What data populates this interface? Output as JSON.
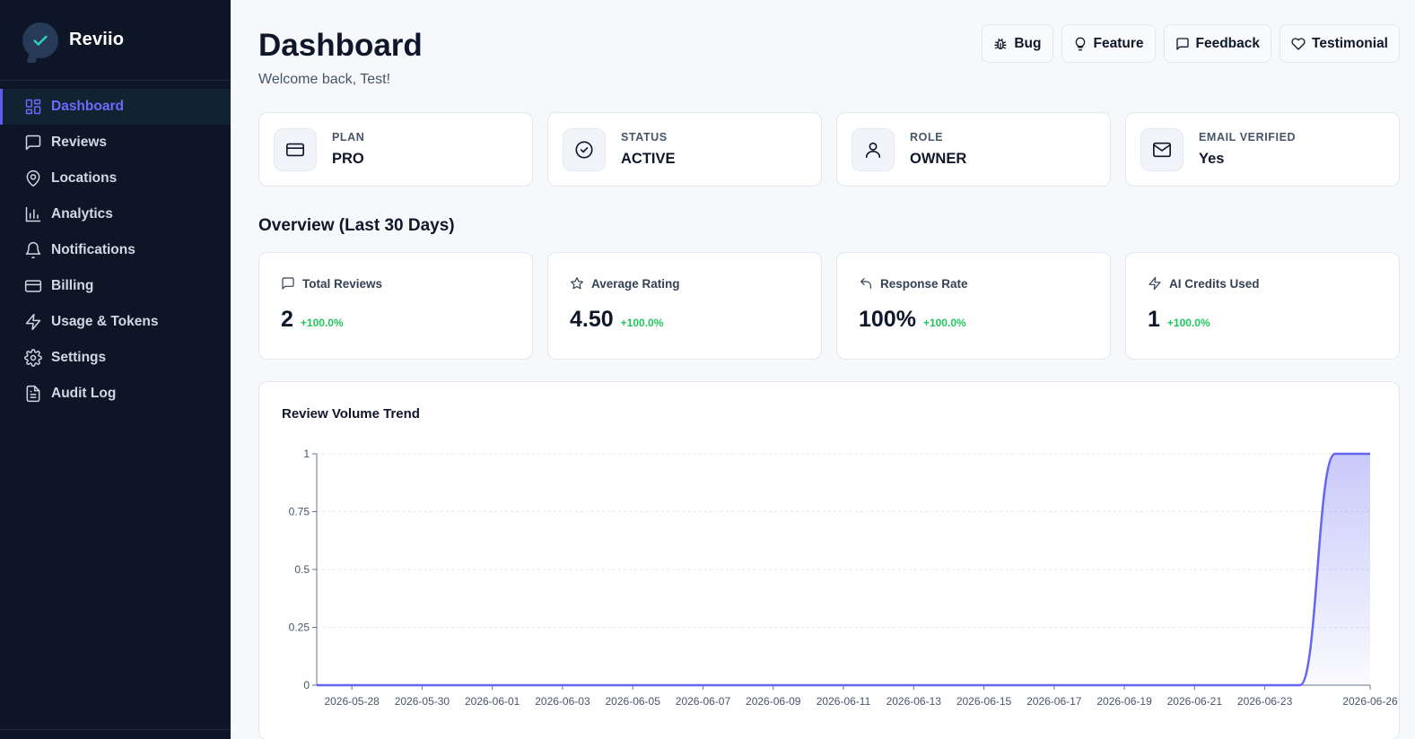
{
  "brand": {
    "name": "Reviio"
  },
  "sidebar": {
    "items": [
      {
        "label": "Dashboard",
        "icon": "grid-icon",
        "active": true
      },
      {
        "label": "Reviews",
        "icon": "message-square-icon"
      },
      {
        "label": "Locations",
        "icon": "map-pin-icon"
      },
      {
        "label": "Analytics",
        "icon": "bar-chart-icon"
      },
      {
        "label": "Notifications",
        "icon": "bell-icon"
      },
      {
        "label": "Billing",
        "icon": "credit-card-icon"
      },
      {
        "label": "Usage & Tokens",
        "icon": "zap-icon"
      },
      {
        "label": "Settings",
        "icon": "gear-icon"
      },
      {
        "label": "Audit Log",
        "icon": "file-text-icon"
      }
    ]
  },
  "header": {
    "title": "Dashboard",
    "welcome": "Welcome back, Test!"
  },
  "actions": {
    "bug": "Bug",
    "feature": "Feature",
    "feedback": "Feedback",
    "testimonial": "Testimonial"
  },
  "info_cards": {
    "plan": {
      "label": "PLAN",
      "value": "PRO"
    },
    "status": {
      "label": "STATUS",
      "value": "ACTIVE"
    },
    "role": {
      "label": "ROLE",
      "value": "OWNER"
    },
    "email": {
      "label": "EMAIL VERIFIED",
      "value": "Yes"
    }
  },
  "overview": {
    "title": "Overview (Last 30 Days)",
    "total_reviews": {
      "label": "Total Reviews",
      "value": "2",
      "change": "+100.0%"
    },
    "average_rating": {
      "label": "Average Rating",
      "value": "4.50",
      "change": "+100.0%"
    },
    "response_rate": {
      "label": "Response Rate",
      "value": "100%",
      "change": "+100.0%"
    },
    "ai_credits": {
      "label": "AI Credits Used",
      "value": "1",
      "change": "+100.0%"
    }
  },
  "colors": {
    "accent": "#6366f1",
    "positive": "#22c55e",
    "sidebar_bg": "#0d1526"
  },
  "chart_data": {
    "type": "area",
    "title": "Review Volume Trend",
    "x": [
      "2026-05-27",
      "2026-05-28",
      "2026-05-29",
      "2026-05-30",
      "2026-05-31",
      "2026-06-01",
      "2026-06-02",
      "2026-06-03",
      "2026-06-04",
      "2026-06-05",
      "2026-06-06",
      "2026-06-07",
      "2026-06-08",
      "2026-06-09",
      "2026-06-10",
      "2026-06-11",
      "2026-06-12",
      "2026-06-13",
      "2026-06-14",
      "2026-06-15",
      "2026-06-16",
      "2026-06-17",
      "2026-06-18",
      "2026-06-19",
      "2026-06-20",
      "2026-06-21",
      "2026-06-22",
      "2026-06-23",
      "2026-06-24",
      "2026-06-25",
      "2026-06-26"
    ],
    "values": [
      0,
      0,
      0,
      0,
      0,
      0,
      0,
      0,
      0,
      0,
      0,
      0,
      0,
      0,
      0,
      0,
      0,
      0,
      0,
      0,
      0,
      0,
      0,
      0,
      0,
      0,
      0,
      0,
      0,
      1,
      1
    ],
    "x_tick_labels": [
      "2026-05-28",
      "2026-05-30",
      "2026-06-01",
      "2026-06-03",
      "2026-06-05",
      "2026-06-07",
      "2026-06-09",
      "2026-06-11",
      "2026-06-13",
      "2026-06-15",
      "2026-06-17",
      "2026-06-19",
      "2026-06-21",
      "2026-06-23",
      "2026-06-26"
    ],
    "y_ticks": [
      0,
      0.25,
      0.5,
      0.75,
      1
    ],
    "y_tick_labels": [
      "0",
      "0.25",
      "0.5",
      "0.75",
      "1"
    ],
    "ylim": [
      0,
      1
    ],
    "grid": true,
    "color": "#6366f1"
  }
}
